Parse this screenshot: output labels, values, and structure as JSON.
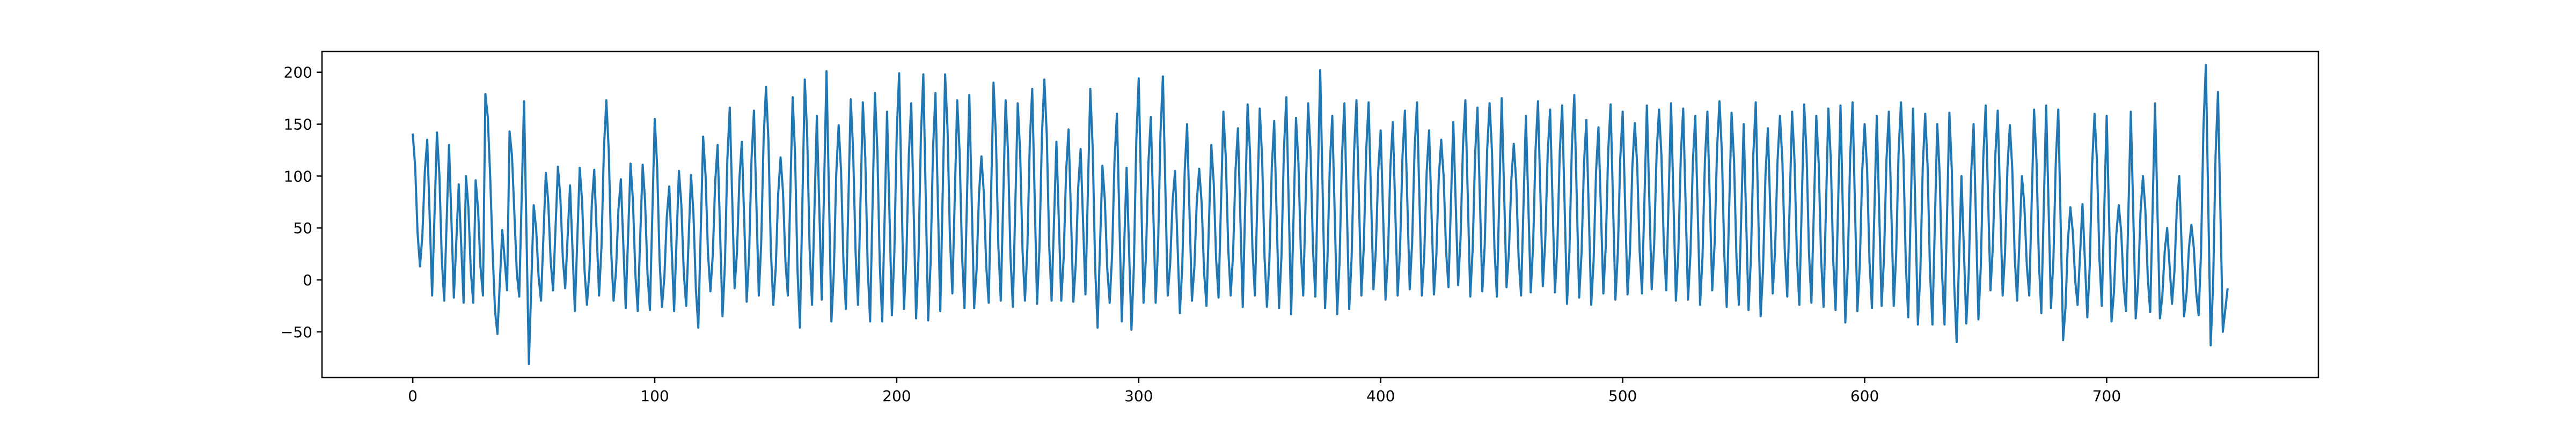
{
  "chart_data": {
    "type": "line",
    "title": "",
    "xlabel": "",
    "ylabel": "",
    "xlim": [
      -37.5,
      787.5
    ],
    "ylim": [
      -94,
      220
    ],
    "x_ticks": [
      0,
      100,
      200,
      300,
      400,
      500,
      600,
      700
    ],
    "y_ticks": [
      -50,
      0,
      50,
      100,
      150,
      200
    ],
    "x_tick_labels": [
      "0",
      "100",
      "200",
      "300",
      "400",
      "500",
      "600",
      "700"
    ],
    "y_tick_labels": [
      "−50",
      "0",
      "50",
      "100",
      "150",
      "200"
    ],
    "grid": false,
    "legend": "none",
    "line_color": "#1f77b4",
    "series": [
      {
        "x_start": 0,
        "x_step": 1,
        "n_points": 751,
        "peaks": [
          [
            0,
            141
          ],
          [
            6,
            135
          ],
          [
            10,
            142
          ],
          [
            15,
            130
          ],
          [
            19,
            92
          ],
          [
            22,
            100
          ],
          [
            26,
            96
          ],
          [
            30,
            179
          ],
          [
            37,
            48
          ],
          [
            40,
            143
          ],
          [
            46,
            172
          ],
          [
            50,
            72
          ],
          [
            55,
            103
          ],
          [
            60,
            109
          ],
          [
            65,
            91
          ],
          [
            69,
            108
          ],
          [
            75,
            106
          ],
          [
            80,
            173
          ],
          [
            86,
            97
          ],
          [
            90,
            112
          ],
          [
            95,
            111
          ],
          [
            100,
            155
          ],
          [
            106,
            90
          ],
          [
            110,
            105
          ],
          [
            115,
            101
          ],
          [
            120,
            138
          ],
          [
            126,
            130
          ],
          [
            131,
            166
          ],
          [
            136,
            133
          ],
          [
            141,
            163
          ],
          [
            146,
            186
          ],
          [
            152,
            118
          ],
          [
            157,
            176
          ],
          [
            162,
            193
          ],
          [
            167,
            158
          ],
          [
            171,
            201
          ],
          [
            176,
            149
          ],
          [
            181,
            174
          ],
          [
            186,
            171
          ],
          [
            191,
            180
          ],
          [
            196,
            162
          ],
          [
            201,
            199
          ],
          [
            206,
            170
          ],
          [
            211,
            198
          ],
          [
            216,
            180
          ],
          [
            220,
            198
          ],
          [
            225,
            173
          ],
          [
            230,
            178
          ],
          [
            235,
            119
          ],
          [
            240,
            190
          ],
          [
            245,
            173
          ],
          [
            250,
            170
          ],
          [
            256,
            184
          ],
          [
            261,
            193
          ],
          [
            266,
            133
          ],
          [
            271,
            145
          ],
          [
            276,
            126
          ],
          [
            280,
            184
          ],
          [
            285,
            110
          ],
          [
            291,
            160
          ],
          [
            295,
            108
          ],
          [
            300,
            194
          ],
          [
            305,
            157
          ],
          [
            310,
            196
          ],
          [
            315,
            105
          ],
          [
            320,
            150
          ],
          [
            325,
            107
          ],
          [
            330,
            130
          ],
          [
            335,
            162
          ],
          [
            341,
            146
          ],
          [
            345,
            169
          ],
          [
            350,
            165
          ],
          [
            356,
            153
          ],
          [
            361,
            176
          ],
          [
            365,
            156
          ],
          [
            370,
            170
          ],
          [
            375,
            202
          ],
          [
            380,
            158
          ],
          [
            385,
            170
          ],
          [
            390,
            173
          ],
          [
            395,
            171
          ],
          [
            400,
            144
          ],
          [
            405,
            152
          ],
          [
            410,
            163
          ],
          [
            415,
            171
          ],
          [
            420,
            144
          ],
          [
            425,
            135
          ],
          [
            430,
            152
          ],
          [
            435,
            173
          ],
          [
            440,
            166
          ],
          [
            445,
            170
          ],
          [
            450,
            175
          ],
          [
            455,
            131
          ],
          [
            460,
            158
          ],
          [
            465,
            172
          ],
          [
            470,
            164
          ],
          [
            475,
            168
          ],
          [
            480,
            178
          ],
          [
            485,
            154
          ],
          [
            490,
            147
          ],
          [
            495,
            169
          ],
          [
            500,
            162
          ],
          [
            505,
            151
          ],
          [
            510,
            168
          ],
          [
            515,
            164
          ],
          [
            520,
            170
          ],
          [
            525,
            165
          ],
          [
            530,
            158
          ],
          [
            535,
            162
          ],
          [
            540,
            172
          ],
          [
            545,
            161
          ],
          [
            550,
            150
          ],
          [
            555,
            171
          ],
          [
            560,
            146
          ],
          [
            565,
            158
          ],
          [
            570,
            162
          ],
          [
            575,
            169
          ],
          [
            580,
            158
          ],
          [
            585,
            165
          ],
          [
            590,
            168
          ],
          [
            595,
            171
          ],
          [
            600,
            150
          ],
          [
            605,
            158
          ],
          [
            610,
            162
          ],
          [
            615,
            171
          ],
          [
            620,
            165
          ],
          [
            625,
            160
          ],
          [
            630,
            150
          ],
          [
            635,
            161
          ],
          [
            640,
            100
          ],
          [
            645,
            150
          ],
          [
            650,
            168
          ],
          [
            655,
            163
          ],
          [
            660,
            149
          ],
          [
            665,
            100
          ],
          [
            670,
            164
          ],
          [
            675,
            168
          ],
          [
            680,
            164
          ],
          [
            685,
            70
          ],
          [
            690,
            73
          ],
          [
            695,
            160
          ],
          [
            700,
            158
          ],
          [
            705,
            72
          ],
          [
            710,
            162
          ],
          [
            715,
            100
          ],
          [
            720,
            170
          ],
          [
            725,
            50
          ],
          [
            730,
            100
          ],
          [
            735,
            53
          ],
          [
            741,
            207
          ],
          [
            746,
            181
          ]
        ],
        "troughs": [
          [
            3,
            13
          ],
          [
            8,
            -15
          ],
          [
            13,
            -20
          ],
          [
            17,
            -17
          ],
          [
            21,
            -22
          ],
          [
            25,
            -22
          ],
          [
            29,
            -15
          ],
          [
            35,
            -52
          ],
          [
            39,
            -10
          ],
          [
            44,
            -16
          ],
          [
            48,
            -81
          ],
          [
            53,
            -20
          ],
          [
            58,
            -10
          ],
          [
            63,
            -8
          ],
          [
            67,
            -30
          ],
          [
            72,
            -24
          ],
          [
            77,
            -15
          ],
          [
            83,
            -20
          ],
          [
            88,
            -27
          ],
          [
            93,
            -30
          ],
          [
            98,
            -29
          ],
          [
            103,
            -26
          ],
          [
            108,
            -30
          ],
          [
            113,
            -25
          ],
          [
            118,
            -46
          ],
          [
            123,
            -11
          ],
          [
            128,
            -35
          ],
          [
            133,
            -8
          ],
          [
            138,
            -21
          ],
          [
            143,
            -15
          ],
          [
            149,
            -24
          ],
          [
            155,
            -15
          ],
          [
            160,
            -46
          ],
          [
            165,
            -24
          ],
          [
            169,
            -19
          ],
          [
            173,
            -40
          ],
          [
            179,
            -28
          ],
          [
            184,
            -24
          ],
          [
            189,
            -40
          ],
          [
            194,
            -40
          ],
          [
            198,
            -34
          ],
          [
            203,
            -28
          ],
          [
            208,
            -37
          ],
          [
            213,
            -39
          ],
          [
            218,
            -30
          ],
          [
            223,
            -13
          ],
          [
            228,
            -27
          ],
          [
            232,
            -27
          ],
          [
            238,
            -22
          ],
          [
            243,
            -20
          ],
          [
            248,
            -26
          ],
          [
            253,
            -20
          ],
          [
            258,
            -23
          ],
          [
            264,
            -20
          ],
          [
            268,
            -20
          ],
          [
            273,
            -21
          ],
          [
            278,
            -14
          ],
          [
            283,
            -46
          ],
          [
            288,
            -22
          ],
          [
            293,
            -40
          ],
          [
            297,
            -48
          ],
          [
            302,
            -22
          ],
          [
            307,
            -22
          ],
          [
            312,
            -15
          ],
          [
            317,
            -32
          ],
          [
            322,
            -20
          ],
          [
            328,
            -25
          ],
          [
            333,
            -17
          ],
          [
            338,
            -15
          ],
          [
            343,
            -26
          ],
          [
            348,
            -15
          ],
          [
            353,
            -26
          ],
          [
            358,
            -27
          ],
          [
            363,
            -33
          ],
          [
            368,
            -15
          ],
          [
            373,
            -16
          ],
          [
            377,
            -27
          ],
          [
            382,
            -33
          ],
          [
            387,
            -28
          ],
          [
            392,
            -15
          ],
          [
            397,
            -9
          ],
          [
            402,
            -19
          ],
          [
            407,
            -15
          ],
          [
            412,
            -9
          ],
          [
            417,
            -15
          ],
          [
            422,
            -14
          ],
          [
            428,
            -7
          ],
          [
            432,
            -5
          ],
          [
            437,
            -16
          ],
          [
            442,
            -11
          ],
          [
            448,
            -16
          ],
          [
            452,
            -7
          ],
          [
            458,
            -15
          ],
          [
            462,
            -12
          ],
          [
            467,
            -6
          ],
          [
            472,
            -12
          ],
          [
            477,
            -23
          ],
          [
            482,
            -17
          ],
          [
            487,
            -24
          ],
          [
            492,
            -13
          ],
          [
            497,
            -19
          ],
          [
            502,
            -14
          ],
          [
            508,
            -13
          ],
          [
            512,
            -9
          ],
          [
            518,
            -10
          ],
          [
            522,
            -20
          ],
          [
            527,
            -19
          ],
          [
            532,
            -24
          ],
          [
            537,
            -10
          ],
          [
            543,
            -26
          ],
          [
            548,
            -24
          ],
          [
            552,
            -29
          ],
          [
            557,
            -35
          ],
          [
            562,
            -13
          ],
          [
            568,
            -16
          ],
          [
            573,
            -24
          ],
          [
            578,
            -22
          ],
          [
            583,
            -26
          ],
          [
            588,
            -29
          ],
          [
            592,
            -41
          ],
          [
            597,
            -30
          ],
          [
            603,
            -27
          ],
          [
            607,
            -25
          ],
          [
            612,
            -25
          ],
          [
            618,
            -36
          ],
          [
            622,
            -43
          ],
          [
            628,
            -43
          ],
          [
            633,
            -43
          ],
          [
            638,
            -60
          ],
          [
            642,
            -42
          ],
          [
            647,
            -38
          ],
          [
            652,
            -10
          ],
          [
            657,
            -15
          ],
          [
            663,
            -20
          ],
          [
            668,
            -15
          ],
          [
            673,
            -32
          ],
          [
            677,
            -27
          ],
          [
            682,
            -58
          ],
          [
            688,
            -24
          ],
          [
            692,
            -36
          ],
          [
            698,
            -25
          ],
          [
            702,
            -40
          ],
          [
            708,
            -30
          ],
          [
            712,
            -37
          ],
          [
            718,
            -31
          ],
          [
            722,
            -37
          ],
          [
            727,
            -23
          ],
          [
            732,
            -35
          ],
          [
            738,
            -34
          ],
          [
            743,
            -63
          ],
          [
            748,
            -50
          ],
          [
            750,
            -8
          ]
        ]
      }
    ]
  }
}
